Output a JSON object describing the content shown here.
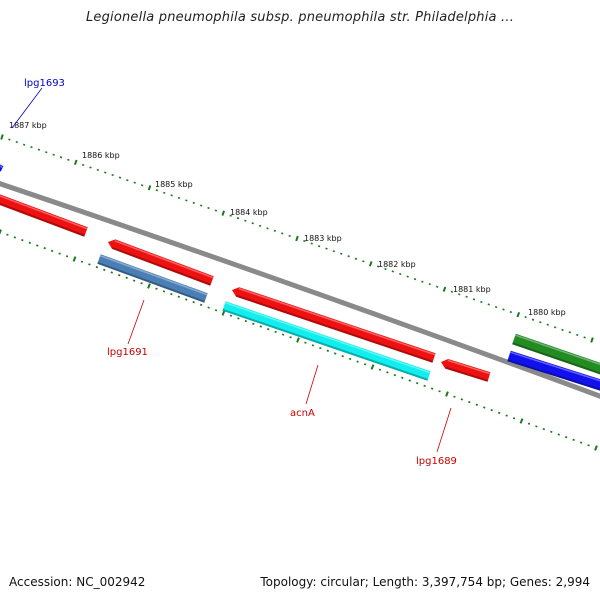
{
  "title": "Legionella pneumophila subsp. pneumophila str. Philadelphia ...",
  "footer": {
    "accession": "Accession: NC_002942",
    "topology": "Topology: circular; Length: 3,397,754 bp; Genes: 2,994"
  },
  "colors": {
    "backbone": "#8a8a8a",
    "ticks": "#1a7a1a",
    "gene_red": "#ee1111",
    "gene_steelblue": "#4a7fb5",
    "gene_cyan": "#11eeee",
    "gene_green": "#228b22",
    "gene_blue": "#1111ee",
    "label_red": "#cc0000",
    "label_blue": "#0000cc"
  },
  "kbp_labels": [
    "1887 kbp",
    "1886 kbp",
    "1885 kbp",
    "1884 kbp",
    "1883 kbp",
    "1882 kbp",
    "1881 kbp",
    "1880 kbp"
  ],
  "gene_labels": [
    {
      "name": "lpg1693",
      "color": "label_blue"
    },
    {
      "name": "lpg1691",
      "color": "label_red"
    },
    {
      "name": "acnA",
      "color": "label_red"
    },
    {
      "name": "lpg1689",
      "color": "label_red"
    }
  ],
  "genes": [
    {
      "id": "gene-red-1",
      "color": "gene_red"
    },
    {
      "id": "gene-red-2",
      "color": "gene_red"
    },
    {
      "id": "gene-steelblue",
      "color": "gene_steelblue"
    },
    {
      "id": "gene-red-3",
      "color": "gene_red"
    },
    {
      "id": "gene-cyan",
      "color": "gene_cyan"
    },
    {
      "id": "gene-red-4",
      "color": "gene_red"
    },
    {
      "id": "gene-green",
      "color": "gene_green"
    },
    {
      "id": "gene-blue",
      "color": "gene_blue"
    },
    {
      "id": "gene-blue-small",
      "color": "gene_blue"
    }
  ]
}
